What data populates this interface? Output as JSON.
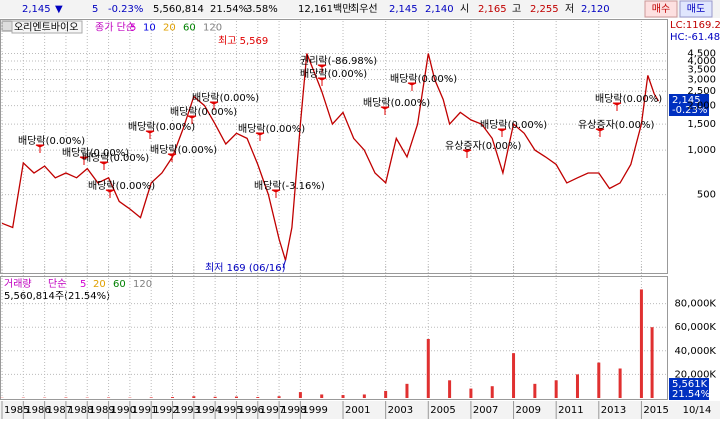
{
  "toolbar": {
    "price": "2,145",
    "arrow": "▼",
    "change": "5",
    "change_rate": "-0.23%",
    "volume": "5,560,814",
    "volume_rate": "21.54%",
    "turnover_rate": "3.58%",
    "amount": "12,161백만",
    "best_label": "최우선",
    "ask": "2,145",
    "bid": "2,140",
    "open_label": "시",
    "open": "2,165",
    "high_label": "고",
    "high": "2,255",
    "low_label": "저",
    "low": "2,120",
    "buy": "매수",
    "sell": "매도"
  },
  "chart_header": {
    "stock": "오리엔트바이오",
    "ma_label": "종가 단순",
    "lc": "LC:1169.23",
    "hc": "HC:-61.48"
  },
  "volume_header": {
    "label": "거래량",
    "ma_label": "단순",
    "summary": "5,560,814주(21.54%)"
  },
  "date_label": "10/14",
  "price_tag": [
    "2,145",
    "-0.23%"
  ],
  "volume_tag": [
    "5,561K",
    "21.54%"
  ],
  "chart_data": [
    {
      "type": "line",
      "color": "#c00000",
      "log_scale": true,
      "grid": true,
      "x": [
        1985,
        1985.5,
        1986,
        1986.5,
        1987,
        1987.5,
        1988,
        1988.5,
        1989,
        1989.5,
        1990,
        1990.5,
        1991,
        1991.5,
        1992,
        1992.5,
        1993,
        1993.5,
        1994,
        1994.5,
        1995,
        1995.5,
        1996,
        1996.5,
        1997,
        1997.5,
        1998,
        1998.3,
        1998.6,
        1999,
        1999.3,
        1999.6,
        2000,
        2000.5,
        2001,
        2001.5,
        2002,
        2002.5,
        2003,
        2003.5,
        2004,
        2004.5,
        2005,
        2005.3,
        2005.7,
        2006,
        2006.5,
        2007,
        2007.5,
        2008,
        2008.5,
        2009,
        2009.5,
        2010,
        2010.5,
        2011,
        2011.5,
        2012,
        2012.5,
        2013,
        2013.5,
        2014,
        2014.5,
        2015,
        2015.3,
        2015.6,
        2015.8
      ],
      "values": [
        320,
        300,
        820,
        700,
        780,
        650,
        700,
        650,
        750,
        600,
        650,
        450,
        400,
        350,
        600,
        700,
        900,
        1400,
        2300,
        2000,
        1500,
        1100,
        1300,
        1200,
        800,
        500,
        250,
        180,
        300,
        1500,
        4500,
        3500,
        2500,
        1500,
        1800,
        1200,
        1000,
        700,
        600,
        1200,
        900,
        1500,
        4500,
        3000,
        2200,
        1500,
        1800,
        1600,
        1500,
        1200,
        700,
        1500,
        1300,
        1000,
        900,
        800,
        600,
        650,
        700,
        700,
        550,
        600,
        800,
        1500,
        3200,
        2400,
        2145
      ],
      "xlim": [
        1985,
        2016.2
      ],
      "xticks": [
        1985,
        1986,
        1987,
        1988,
        1989,
        1990,
        1991,
        1992,
        1993,
        1994,
        1995,
        1996,
        1997,
        1998,
        1999,
        2001,
        2003,
        2005,
        2007,
        2009,
        2011,
        2013,
        2015
      ],
      "ylim": [
        150,
        6000
      ],
      "yticks": [
        500,
        {
          "value": 1000,
          "label": "1,000"
        },
        {
          "value": 1500,
          "label": "1,500"
        },
        {
          "value": 2000,
          "label": "2,000"
        },
        {
          "value": 2500,
          "label": "2,500"
        },
        {
          "value": 3000,
          "label": "3,000"
        },
        {
          "value": 3500,
          "label": "3,500"
        },
        {
          "value": 4000,
          "label": "4,000"
        },
        {
          "value": 4500,
          "label": "4,500"
        }
      ],
      "moving_averages": [
        {
          "name": "5",
          "color": "#d000d0"
        },
        {
          "name": "10",
          "color": "#0000e0"
        },
        {
          "name": "20",
          "color": "#e0a000"
        },
        {
          "name": "60",
          "color": "#008000"
        },
        {
          "name": "120",
          "color": "#808080"
        }
      ],
      "high_label": "최고 5,569",
      "low_label": "최저 169 (06/16)",
      "annotations": [
        "배당락(0.00%)",
        "배당락(0.00%)",
        "배당락(0.00%)",
        "배당락(0.00%)",
        "배당락(0.00%)",
        "배당락(0.00%)",
        "배당락(0.00%)",
        "배당락(0.00%)",
        "배당락(0.00%)",
        "배당락(-3.16%)",
        "권리락(-86.98%)",
        "배당락(0.00%)",
        "배당락(0.00%)",
        "배당락(0.00%)",
        "유상증자(0.00%)",
        "배당락(0.00%)",
        "유상증자(0.00%)",
        "배당락(0.00%)"
      ]
    },
    {
      "type": "bar",
      "color": "#e03030",
      "x": [
        1985,
        1986,
        1987,
        1988,
        1989,
        1990,
        1991,
        1992,
        1993,
        1994,
        1995,
        1996,
        1997,
        1998,
        1999,
        2000,
        2001,
        2002,
        2003,
        2004,
        2005,
        2006,
        2007,
        2008,
        2009,
        2010,
        2011,
        2012,
        2013,
        2014,
        2015,
        2015.5
      ],
      "values": [
        200,
        300,
        300,
        400,
        300,
        400,
        300,
        500,
        800,
        1500,
        1000,
        1200,
        800,
        1500,
        5000,
        3000,
        2500,
        3000,
        6000,
        12000,
        50000,
        15000,
        8000,
        10000,
        38000,
        12000,
        15000,
        20000,
        30000,
        25000,
        92000,
        60000
      ],
      "xlim": [
        1985,
        2016.2
      ],
      "ylim": [
        0,
        100000
      ],
      "yticks": [
        {
          "value": 20000,
          "label": "20,000K"
        },
        {
          "value": 40000,
          "label": "40,000K"
        },
        {
          "value": 60000,
          "label": "60,000K"
        },
        {
          "value": 80000,
          "label": "80,000K"
        }
      ],
      "moving_averages": [
        {
          "name": "5",
          "color": "#d000d0"
        },
        {
          "name": "20",
          "color": "#e0a000"
        },
        {
          "name": "60",
          "color": "#008000"
        },
        {
          "name": "120",
          "color": "#808080"
        }
      ]
    }
  ]
}
